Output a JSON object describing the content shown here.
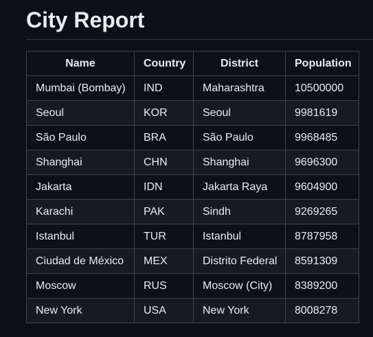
{
  "page": {
    "title": "City Report"
  },
  "table": {
    "headers": [
      "Name",
      "Country",
      "District",
      "Population"
    ],
    "rows": [
      [
        "Mumbai (Bombay)",
        "IND",
        "Maharashtra",
        "10500000"
      ],
      [
        "Seoul",
        "KOR",
        "Seoul",
        "9981619"
      ],
      [
        "São Paulo",
        "BRA",
        "São Paulo",
        "9968485"
      ],
      [
        "Shanghai",
        "CHN",
        "Shanghai",
        "9696300"
      ],
      [
        "Jakarta",
        "IDN",
        "Jakarta Raya",
        "9604900"
      ],
      [
        "Karachi",
        "PAK",
        "Sindh",
        "9269265"
      ],
      [
        "Istanbul",
        "TUR",
        "Istanbul",
        "8787958"
      ],
      [
        "Ciudad de México",
        "MEX",
        "Distrito Federal",
        "8591309"
      ],
      [
        "Moscow",
        "RUS",
        "Moscow (City)",
        "8389200"
      ],
      [
        "New York",
        "USA",
        "New York",
        "8008278"
      ]
    ]
  }
}
